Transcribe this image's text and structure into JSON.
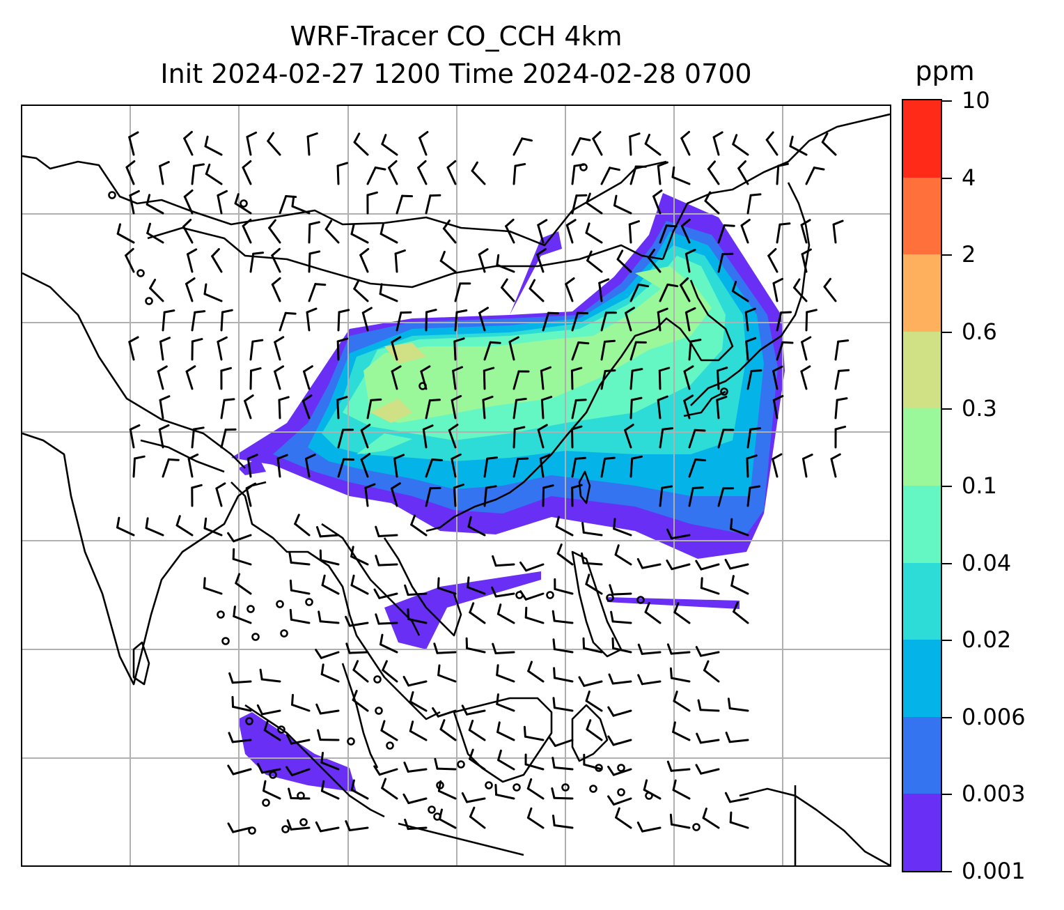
{
  "title": {
    "line1": "WRF-Tracer CO_CCH 4km",
    "line2": "Init 2024-02-27 1200 Time 2024-02-28 0700"
  },
  "colorbar": {
    "unit": "ppm",
    "levels": [
      "0.001",
      "0.003",
      "0.006",
      "0.02",
      "0.04",
      "0.1",
      "0.3",
      "0.6",
      "2",
      "4",
      "10"
    ],
    "colors": [
      "#6a2ff5",
      "#3574f0",
      "#04b3e8",
      "#2ddcd6",
      "#65f7c3",
      "#9af79a",
      "#cfe085",
      "#feb05d",
      "#ff703a",
      "#ff2b18"
    ]
  },
  "map": {
    "gridlines": true,
    "grid_color": "#b0b0b0",
    "coastline_color": "#000000",
    "field": "CO_CCH tracer concentration",
    "wind_symbol": "wind barbs"
  }
}
